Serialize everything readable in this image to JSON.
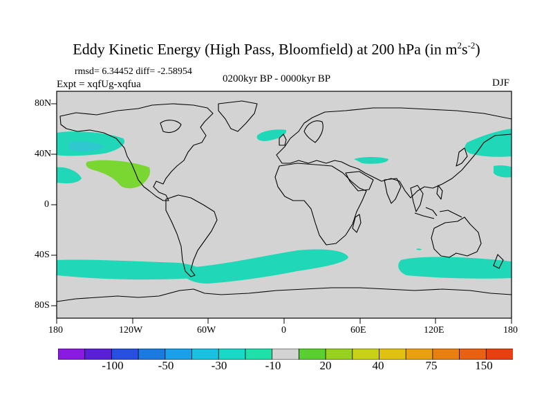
{
  "title": "Eddy Kinetic Energy (High Pass, Bloomfield) at 200 hPa (in m",
  "title_units": {
    "sup1": "2",
    "mid": "s",
    "sup2": "-2",
    "close": ")"
  },
  "stats": "rmsd= 6.34452  diff= -2.58954",
  "experiment": "Expt = xqfUg-xqfua",
  "period": "0200kyr BP - 0000kyr BP",
  "season": "DJF",
  "map": {
    "lat_labels": [
      "80N",
      "40N",
      "0",
      "40S",
      "80S"
    ],
    "lon_labels": [
      "180",
      "120W",
      "60W",
      "0",
      "60E",
      "120E",
      "180"
    ],
    "land_color": "#d3d3d3",
    "coast_color": "#000000"
  },
  "anomalies": [
    {
      "name": "north-pacific-west-teal",
      "color": "#20d8b8"
    },
    {
      "name": "north-pacific-west-core",
      "color": "#30c8d0"
    },
    {
      "name": "northeast-pacific-green",
      "color": "#7ad630"
    },
    {
      "name": "north-atlantic-teal",
      "color": "#20d8b8"
    },
    {
      "name": "mediterranean-teal",
      "color": "#20d8b8"
    },
    {
      "name": "kuroshio-teal",
      "color": "#20d8b8"
    },
    {
      "name": "southern-ocean-atlantic-band",
      "color": "#20d8b8"
    },
    {
      "name": "southern-ocean-pacific-band",
      "color": "#20d8b8"
    },
    {
      "name": "southern-ocean-indian-band",
      "color": "#20d8b8"
    }
  ],
  "colorbar": {
    "colors": [
      "#8a1ae0",
      "#5a20d8",
      "#2850e0",
      "#1a7ae0",
      "#1aa0e8",
      "#1ac0e0",
      "#18d8c8",
      "#1ee0a8",
      "#d3d3d3",
      "#5ad030",
      "#98d020",
      "#c8d018",
      "#e0c010",
      "#e8a010",
      "#e88010",
      "#e86010",
      "#e84010"
    ],
    "labels": [
      "-100",
      "-50",
      "-30",
      "-10",
      "20",
      "40",
      "75",
      "150"
    ]
  }
}
